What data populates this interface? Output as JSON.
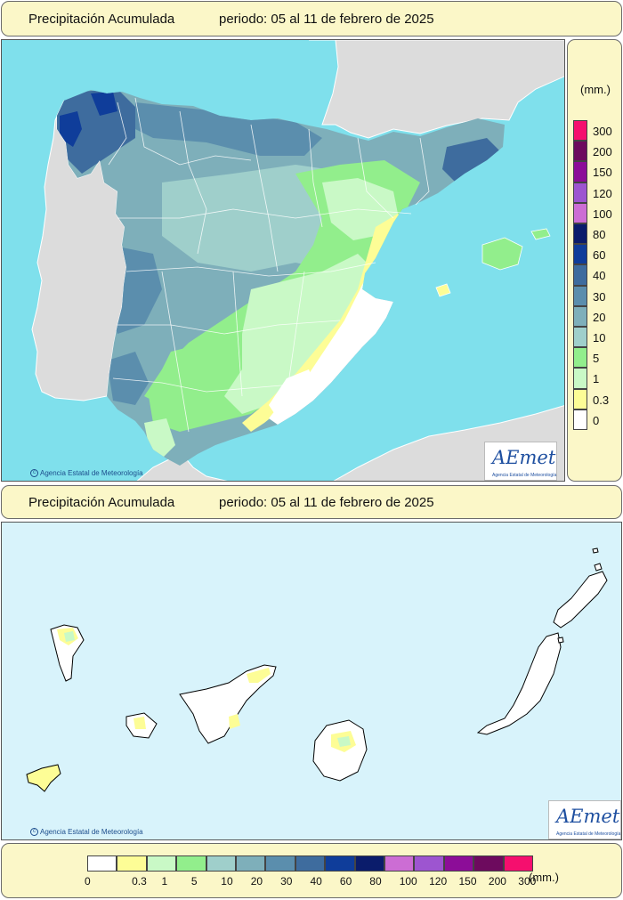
{
  "header_top": {
    "title": "Precipitación Acumulada",
    "period": "periodo: 05 al 11 de febrero de 2025"
  },
  "header_bottom": {
    "title": "Precipitación Acumulada",
    "period": "periodo: 05 al 11 de febrero de 2025"
  },
  "legend_vertical": {
    "unit": "(mm.)",
    "labels": [
      "300",
      "200",
      "150",
      "120",
      "100",
      "80",
      "60",
      "40",
      "30",
      "20",
      "10",
      "5",
      "1",
      "0.3",
      "0"
    ]
  },
  "legend_horizontal": {
    "unit": "(mm.)",
    "labels": [
      "0",
      "0.3",
      "1",
      "5",
      "10",
      "20",
      "30",
      "40",
      "60",
      "80",
      "100",
      "120",
      "150",
      "200",
      "300"
    ]
  },
  "scale_colors": [
    "#ffffff",
    "#fdfd96",
    "#c9f9c6",
    "#92ee8c",
    "#9fcfcb",
    "#7eafba",
    "#5b8ead",
    "#3e6c9e",
    "#0f3d9a",
    "#0a1c6b",
    "#cc6dd4",
    "#9d55d0",
    "#8c0d98",
    "#6d0a5e",
    "#f50f6e"
  ],
  "map_colors": {
    "sea": "#7fe0ec",
    "sea_canarias": "#d8f3fb",
    "foreign_land": "#dcdcdc",
    "border": "#ffffff"
  },
  "credits": {
    "top": "Agencia Estatal de Meteorología",
    "bottom": "Agencia Estatal de Meteorología"
  },
  "logo": {
    "text": "AEmet",
    "subtitle": "Agencia Estatal de Meteorología"
  }
}
